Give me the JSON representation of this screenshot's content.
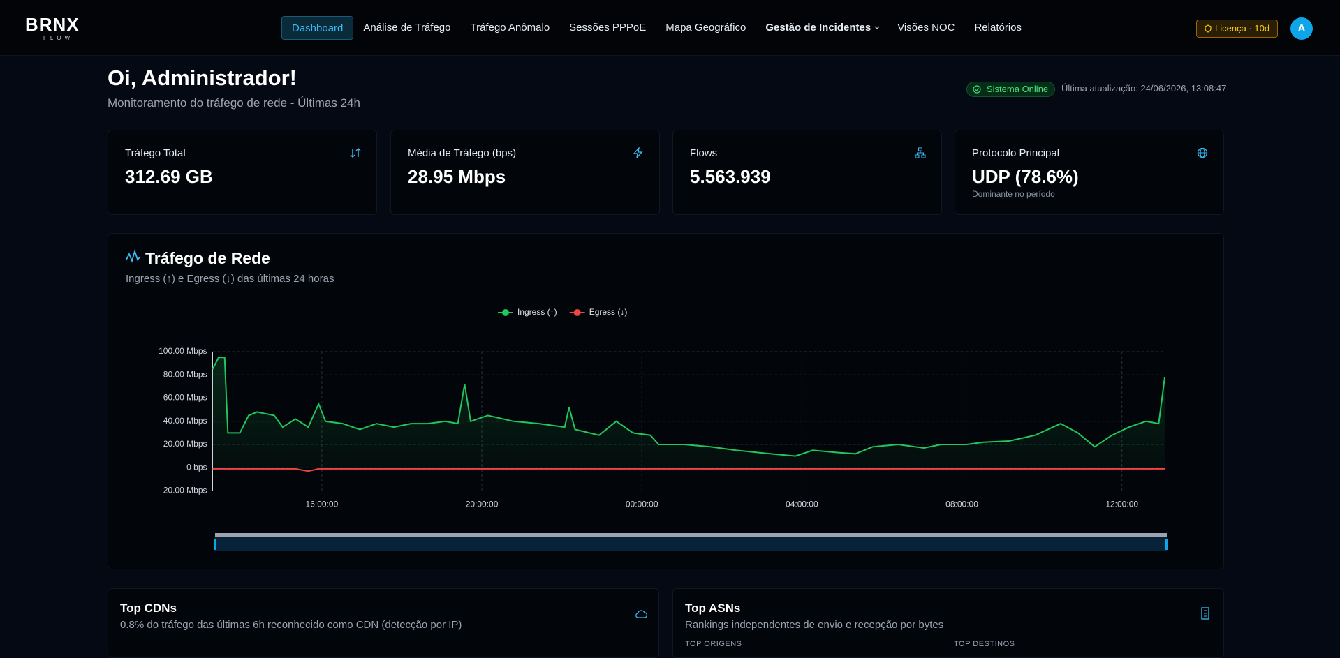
{
  "nav": {
    "logo": "BRNX",
    "logo_sub": "FLOW",
    "items": [
      "Dashboard",
      "Análise de Tráfego",
      "Tráfego Anômalo",
      "Sessões PPPoE",
      "Mapa Geográfico",
      "Gestão de Incidentes",
      "Visões NOC",
      "Relatórios"
    ],
    "license": "Licença · 10d",
    "avatar": "A"
  },
  "header": {
    "title": "Oi, Administrador!",
    "subtitle": "Monitoramento do tráfego de rede - Últimas 24h",
    "status": "Sistema Online",
    "updated": "Última atualização: 24/06/2026, 13:08:47"
  },
  "cards": [
    {
      "label": "Tráfego Total",
      "value": "312.69 GB"
    },
    {
      "label": "Média de Tráfego (bps)",
      "value": "28.95 Mbps"
    },
    {
      "label": "Flows",
      "value": "5.563.939"
    },
    {
      "label": "Protocolo Principal",
      "value": "UDP (78.6%)",
      "note": "Dominante no período"
    }
  ],
  "chart_data": {
    "type": "line",
    "title": "Tráfego de Rede",
    "subtitle": "Ingress (↑) e Egress (↓) das últimas 24 horas",
    "x": [
      13.27,
      13.42,
      13.57,
      13.65,
      13.95,
      14.17,
      14.38,
      14.81,
      15.02,
      15.34,
      15.66,
      15.92,
      16.09,
      16.52,
      16.95,
      17.37,
      17.8,
      18.23,
      18.65,
      19.08,
      19.4,
      19.57,
      19.72,
      20.15,
      20.79,
      21.43,
      22.07,
      22.18,
      22.33,
      22.93,
      23.36,
      23.78,
      24.21,
      24.42,
      25.06,
      25.71,
      26.35,
      27.2,
      27.84,
      28.27,
      28.91,
      29.34,
      29.77,
      30.41,
      31.05,
      31.48,
      32.12,
      32.54,
      33.18,
      33.83,
      34.47,
      34.9,
      35.32,
      35.75,
      36.18,
      36.6,
      36.92,
      37.07
    ],
    "series": [
      {
        "name": "Ingress (↑)",
        "color": "#22c55e",
        "values": [
          85,
          95,
          95,
          30,
          30,
          45,
          48,
          45,
          35,
          42,
          35,
          55,
          40,
          38,
          33,
          38,
          35,
          38,
          38,
          40,
          38,
          72,
          40,
          45,
          40,
          38,
          35,
          52,
          33,
          28,
          40,
          30,
          28,
          20,
          20,
          18,
          15,
          12,
          10,
          15,
          13,
          12,
          18,
          20,
          17,
          20,
          20,
          22,
          23,
          28,
          38,
          30,
          18,
          28,
          35,
          40,
          38,
          78
        ]
      },
      {
        "name": "Egress (↓)",
        "color": "#ef4444",
        "values": [
          -1,
          -1,
          -1,
          -1,
          -1,
          -1,
          -1,
          -1,
          -1,
          -1,
          -3,
          -1,
          -1,
          -1,
          -1,
          -1,
          -1,
          -1,
          -1,
          -1,
          -1,
          -1,
          -1,
          -1,
          -1,
          -1,
          -1,
          -1,
          -1,
          -1,
          -1,
          -1,
          -1,
          -1,
          -1,
          -1,
          -1,
          -1,
          -1,
          -1,
          -1,
          -1,
          -1,
          -1,
          -1,
          -1,
          -1,
          -1,
          -1,
          -1,
          -1,
          -1,
          -1,
          -1,
          -1,
          -1,
          -1,
          -1
        ]
      }
    ],
    "xlim": [
      13.27,
      37.07
    ],
    "xticks": [
      {
        "value": 16,
        "label": "16:00:00"
      },
      {
        "value": 20,
        "label": "20:00:00"
      },
      {
        "value": 24,
        "label": "00:00:00"
      },
      {
        "value": 28,
        "label": "04:00:00"
      },
      {
        "value": 32,
        "label": "08:00:00"
      },
      {
        "value": 36,
        "label": "12:00:00"
      }
    ],
    "ylim": [
      -20,
      100
    ],
    "yticks": [
      {
        "value": 100,
        "label": "100.00 Mbps"
      },
      {
        "value": 80,
        "label": "80.00 Mbps"
      },
      {
        "value": 60,
        "label": "60.00 Mbps"
      },
      {
        "value": 40,
        "label": "40.00 Mbps"
      },
      {
        "value": 20,
        "label": "20.00 Mbps"
      },
      {
        "value": 0,
        "label": "0 bps"
      },
      {
        "value": -20,
        "label": "20.00 Mbps"
      }
    ],
    "legend": "top",
    "grid": true
  },
  "panels": [
    {
      "title": "Top CDNs",
      "subtitle": "0.8% do tráfego das últimas 6h reconhecido como CDN (detecção por IP)"
    },
    {
      "title": "Top ASNs",
      "subtitle": "Rankings independentes de envio e recepção por bytes",
      "columns": [
        "TOP ORIGENS",
        "TOP DESTINOS"
      ]
    }
  ]
}
